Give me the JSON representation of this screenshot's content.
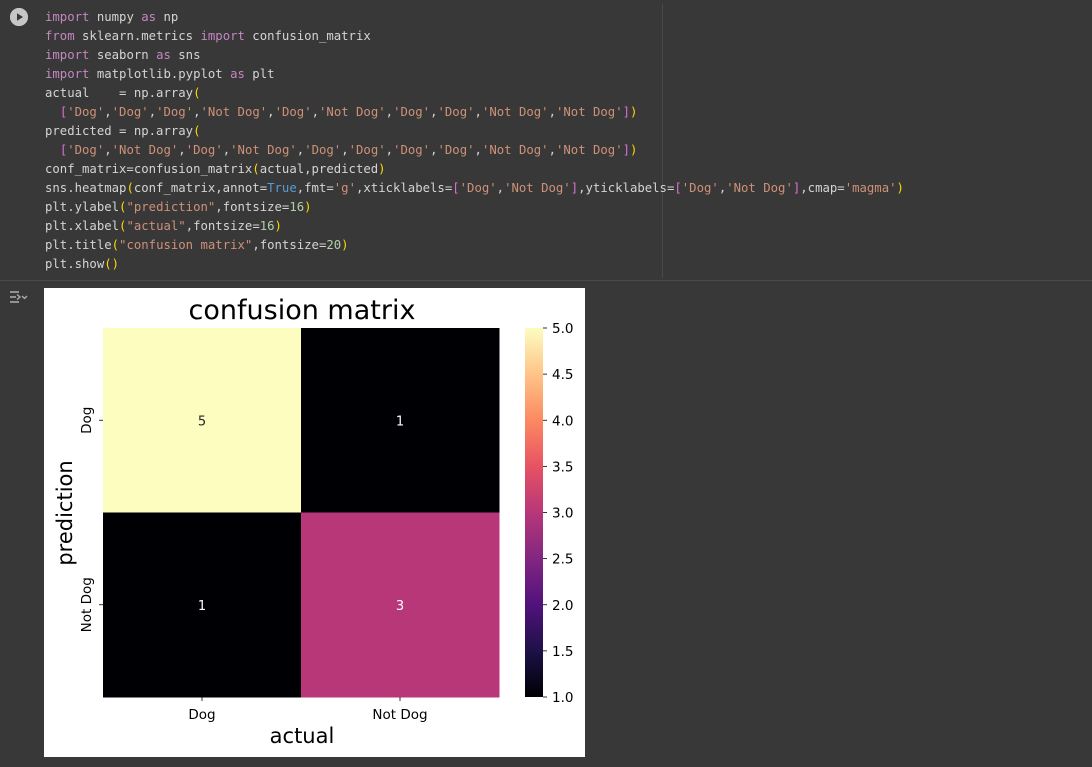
{
  "cell": {
    "run_button": "run-cell",
    "code_lines": [
      [
        [
          "kw",
          "import"
        ],
        [
          "t",
          " numpy "
        ],
        [
          "kw",
          "as"
        ],
        [
          "t",
          " np"
        ]
      ],
      [
        [
          "kw",
          "from"
        ],
        [
          "t",
          " sklearn.metrics "
        ],
        [
          "kw",
          "import"
        ],
        [
          "t",
          " confusion_matrix"
        ]
      ],
      [
        [
          "kw",
          "import"
        ],
        [
          "t",
          " seaborn "
        ],
        [
          "kw",
          "as"
        ],
        [
          "t",
          " sns"
        ]
      ],
      [
        [
          "kw",
          "import"
        ],
        [
          "t",
          " matplotlib.pyplot "
        ],
        [
          "kw",
          "as"
        ],
        [
          "t",
          " plt"
        ]
      ],
      [
        [
          "t",
          "actual    = np.array"
        ],
        [
          "br1",
          "("
        ]
      ],
      [
        [
          "t",
          "  "
        ],
        [
          "br2",
          "["
        ],
        [
          "str",
          "'Dog'"
        ],
        [
          "t",
          ","
        ],
        [
          "str",
          "'Dog'"
        ],
        [
          "t",
          ","
        ],
        [
          "str",
          "'Dog'"
        ],
        [
          "t",
          ","
        ],
        [
          "str",
          "'Not Dog'"
        ],
        [
          "t",
          ","
        ],
        [
          "str",
          "'Dog'"
        ],
        [
          "t",
          ","
        ],
        [
          "str",
          "'Not Dog'"
        ],
        [
          "t",
          ","
        ],
        [
          "str",
          "'Dog'"
        ],
        [
          "t",
          ","
        ],
        [
          "str",
          "'Dog'"
        ],
        [
          "t",
          ","
        ],
        [
          "str",
          "'Not Dog'"
        ],
        [
          "t",
          ","
        ],
        [
          "str",
          "'Not Dog'"
        ],
        [
          "br2",
          "]"
        ],
        [
          "br1",
          ")"
        ]
      ],
      [
        [
          "t",
          "predicted = np.array"
        ],
        [
          "br1",
          "("
        ]
      ],
      [
        [
          "t",
          "  "
        ],
        [
          "br2",
          "["
        ],
        [
          "str",
          "'Dog'"
        ],
        [
          "t",
          ","
        ],
        [
          "str",
          "'Not Dog'"
        ],
        [
          "t",
          ","
        ],
        [
          "str",
          "'Dog'"
        ],
        [
          "t",
          ","
        ],
        [
          "str",
          "'Not Dog'"
        ],
        [
          "t",
          ","
        ],
        [
          "str",
          "'Dog'"
        ],
        [
          "t",
          ","
        ],
        [
          "str",
          "'Dog'"
        ],
        [
          "t",
          ","
        ],
        [
          "str",
          "'Dog'"
        ],
        [
          "t",
          ","
        ],
        [
          "str",
          "'Dog'"
        ],
        [
          "t",
          ","
        ],
        [
          "str",
          "'Not Dog'"
        ],
        [
          "t",
          ","
        ],
        [
          "str",
          "'Not Dog'"
        ],
        [
          "br2",
          "]"
        ],
        [
          "br1",
          ")"
        ]
      ],
      [
        [
          "t",
          "conf_matrix=confusion_matrix"
        ],
        [
          "br1",
          "("
        ],
        [
          "t",
          "actual,predicted"
        ],
        [
          "br1",
          ")"
        ]
      ],
      [
        [
          "t",
          "sns.heatmap"
        ],
        [
          "br1",
          "("
        ],
        [
          "t",
          "conf_matrix,annot="
        ],
        [
          "bool",
          "True"
        ],
        [
          "t",
          ",fmt="
        ],
        [
          "str",
          "'g'"
        ],
        [
          "t",
          ",xticklabels="
        ],
        [
          "br2",
          "["
        ],
        [
          "str",
          "'Dog'"
        ],
        [
          "t",
          ","
        ],
        [
          "str",
          "'Not Dog'"
        ],
        [
          "br2",
          "]"
        ],
        [
          "t",
          ",yticklabels="
        ],
        [
          "br2",
          "["
        ],
        [
          "str",
          "'Dog'"
        ],
        [
          "t",
          ","
        ],
        [
          "str",
          "'Not Dog'"
        ],
        [
          "br2",
          "]"
        ],
        [
          "t",
          ",cmap="
        ],
        [
          "str",
          "'magma'"
        ],
        [
          "br1",
          ")"
        ]
      ],
      [
        [
          "t",
          "plt.ylabel"
        ],
        [
          "br1",
          "("
        ],
        [
          "str",
          "\"prediction\""
        ],
        [
          "t",
          ",fontsize="
        ],
        [
          "num",
          "16"
        ],
        [
          "br1",
          ")"
        ]
      ],
      [
        [
          "t",
          "plt.xlabel"
        ],
        [
          "br1",
          "("
        ],
        [
          "str",
          "\"actual\""
        ],
        [
          "t",
          ",fontsize="
        ],
        [
          "num",
          "16"
        ],
        [
          "br1",
          ")"
        ]
      ],
      [
        [
          "t",
          "plt.title"
        ],
        [
          "br1",
          "("
        ],
        [
          "str",
          "\"confusion matrix\""
        ],
        [
          "t",
          ",fontsize="
        ],
        [
          "num",
          "20"
        ],
        [
          "br1",
          ")"
        ]
      ],
      [
        [
          "t",
          "plt.show"
        ],
        [
          "br1",
          "()"
        ]
      ]
    ]
  },
  "colors": {
    "keyword": "#c586c0",
    "string": "#ce9178",
    "number": "#b5cea8",
    "boolean": "#569cd6",
    "bracket_1": "#ffd700",
    "bracket_2": "#da70d6",
    "background": "#383838"
  },
  "output": {
    "toggle_icon": "output-toggle-icon"
  },
  "chart_data": {
    "type": "heatmap",
    "title": "confusion matrix",
    "xlabel": "actual",
    "ylabel": "prediction",
    "x_categories": [
      "Dog",
      "Not Dog"
    ],
    "y_categories": [
      "Dog",
      "Not Dog"
    ],
    "values": [
      [
        5,
        1
      ],
      [
        1,
        3
      ]
    ],
    "annotations": [
      "5",
      "1",
      "1",
      "3"
    ],
    "cell_colors": [
      [
        "#fcfdbf",
        "#000004"
      ],
      [
        "#000004",
        "#b73779"
      ]
    ],
    "text_colors": [
      [
        "#262626",
        "#ffffff"
      ],
      [
        "#ffffff",
        "#ffffff"
      ]
    ],
    "colormap": "magma",
    "colorbar": {
      "range": [
        1.0,
        5.0
      ],
      "ticks": [
        1.0,
        1.5,
        2.0,
        2.5,
        3.0,
        3.5,
        4.0,
        4.5,
        5.0
      ],
      "tick_labels": [
        "1.0",
        "1.5",
        "2.0",
        "2.5",
        "3.0",
        "3.5",
        "4.0",
        "4.5",
        "5.0"
      ]
    }
  }
}
